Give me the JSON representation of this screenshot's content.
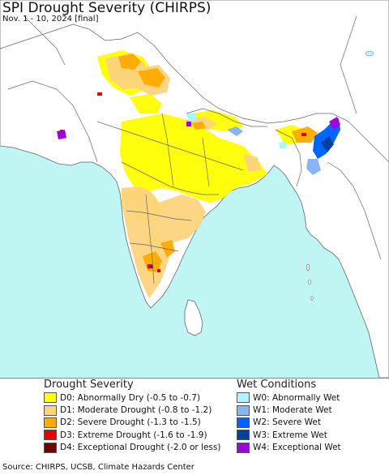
{
  "header": {
    "title": "SPI Drought Severity (CHIRPS)",
    "subtitle": "Nov. 1 - 10, 2024 [final]"
  },
  "colors": {
    "ocean": "#bff5f2",
    "land": "#ffffff",
    "border": "#666666",
    "d0": "#ffff00",
    "d1": "#fcd37f",
    "d2": "#ffaa00",
    "d3": "#e60000",
    "d4": "#730000",
    "w0": "#aaf5ff",
    "w1": "#8ab4f2",
    "w2": "#0064ff",
    "w3": "#0040a0",
    "w4": "#a000dc"
  },
  "legend": {
    "drought": {
      "heading": "Drought Severity",
      "items": [
        {
          "code": "D0",
          "label": "D0: Abnormally Dry (-0.5 to -0.7)",
          "color": "#ffff00"
        },
        {
          "code": "D1",
          "label": "D1: Moderate Drought (-0.8 to -1.2)",
          "color": "#fcd37f"
        },
        {
          "code": "D2",
          "label": "D2: Severe Drought (-1.3 to -1.5)",
          "color": "#ffaa00"
        },
        {
          "code": "D3",
          "label": "D3: Extreme Drought (-1.6 to -1.9)",
          "color": "#e60000"
        },
        {
          "code": "D4",
          "label": "D4: Exceptional Drought (-2.0 or less)",
          "color": "#730000"
        }
      ]
    },
    "wet": {
      "heading": "Wet Conditions",
      "items": [
        {
          "code": "W0",
          "label": "W0: Abnormally Wet",
          "color": "#aaf5ff"
        },
        {
          "code": "W1",
          "label": "W1: Moderate Wet",
          "color": "#8ab4f2"
        },
        {
          "code": "W2",
          "label": "W2: Severe Wet",
          "color": "#0064ff"
        },
        {
          "code": "W3",
          "label": "W3: Extreme Wet",
          "color": "#0040a0"
        },
        {
          "code": "W4",
          "label": "W4: Exceptional Wet",
          "color": "#a000dc"
        }
      ]
    }
  },
  "footer": {
    "source": "Source: CHIRPS, UCSB, Climate Hazards Center"
  }
}
